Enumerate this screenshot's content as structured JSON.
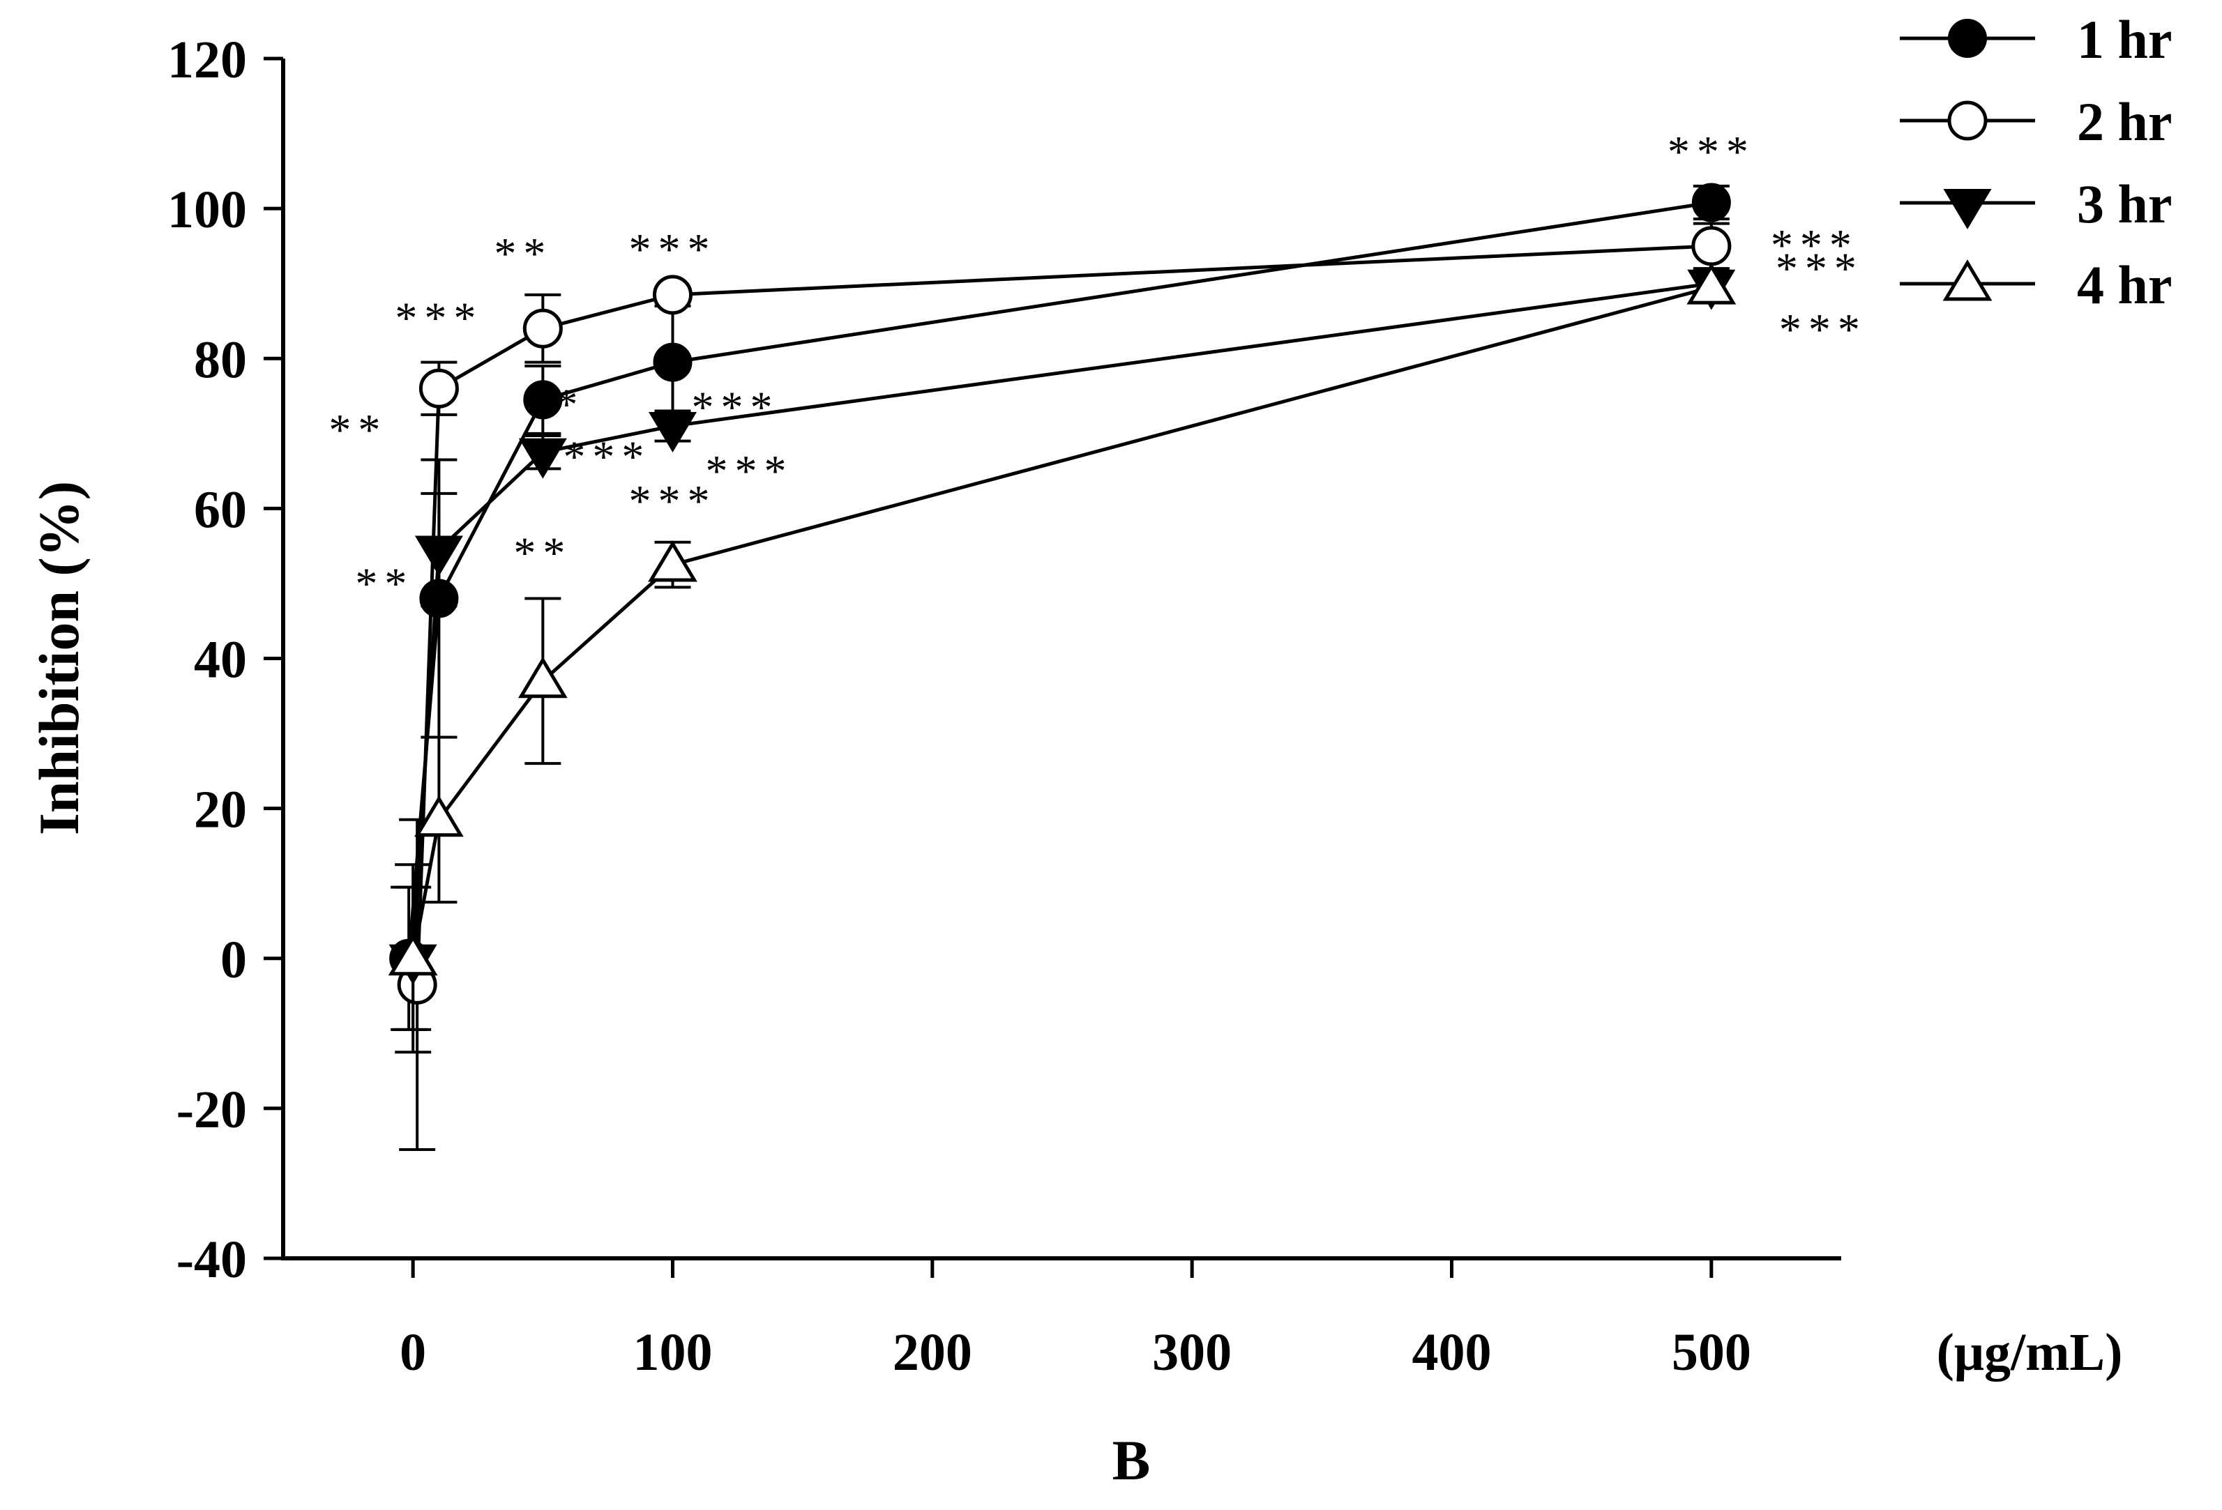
{
  "chart_data": {
    "type": "line",
    "xlabel": "B",
    "x_unit_label": "(μg/mL)",
    "ylabel": "Inhibition (%)",
    "x_ticks": [
      0,
      100,
      200,
      300,
      400,
      500
    ],
    "y_ticks": [
      -40,
      -20,
      0,
      20,
      40,
      60,
      80,
      100,
      120
    ],
    "xlim": [
      -50,
      550
    ],
    "ylim": [
      -40,
      120
    ],
    "x": [
      0,
      10,
      50,
      100,
      500
    ],
    "series": [
      {
        "name": "1 hr",
        "marker": "filled-circle",
        "values": [
          0,
          48,
          74.5,
          79.5,
          100.8
        ],
        "errors": [
          9.5,
          18.5,
          4.5,
          7.5,
          2.2
        ],
        "significance": [
          "",
          "**",
          "**",
          "***",
          "***"
        ]
      },
      {
        "name": "2 hr",
        "marker": "open-circle",
        "values": [
          -3.5,
          76,
          84,
          88.5,
          95
        ],
        "errors": [
          22,
          3.5,
          4.5,
          0.8,
          3
        ],
        "significance": [
          "",
          "***",
          "**",
          "***",
          "***"
        ]
      },
      {
        "name": "3 hr",
        "marker": "filled-triangle-down",
        "values": [
          0,
          54.5,
          67.5,
          71,
          90
        ],
        "errors": [
          12.5,
          7.5,
          2.2,
          2,
          1.8
        ],
        "significance": [
          "",
          "**",
          "***",
          "***",
          "***"
        ]
      },
      {
        "name": "4 hr",
        "marker": "open-triangle-up",
        "values": [
          0,
          18.5,
          37,
          52.5,
          89.5
        ],
        "errors": [
          9.5,
          11,
          11,
          3,
          1.5
        ],
        "significance": [
          "",
          "",
          "**",
          "***",
          "***"
        ]
      }
    ],
    "legend_position": "top-right"
  }
}
